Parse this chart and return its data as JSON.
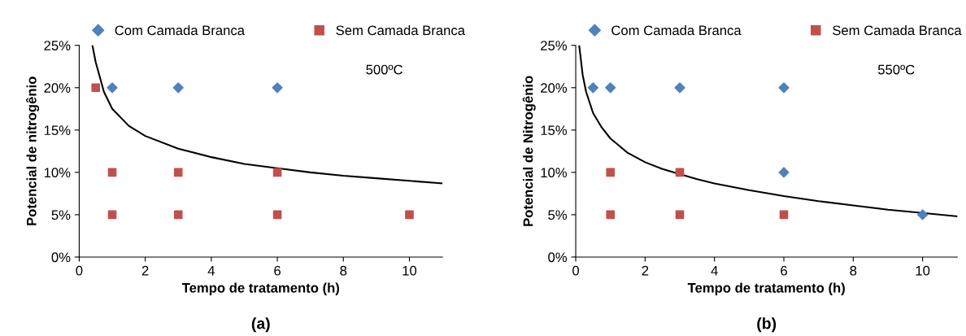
{
  "chart_data": [
    {
      "type": "scatter",
      "xlabel": "Tempo de tratamento (h)",
      "ylabel": "Potencial de nitrogênio",
      "legend": "top",
      "grid": false,
      "xlim": [
        0,
        11
      ],
      "xticks": [
        0,
        2,
        4,
        6,
        8,
        10
      ],
      "ylim": [
        0,
        25
      ],
      "yticks": [
        {
          "value": 0,
          "label": "0%"
        },
        {
          "value": 5,
          "label": "5%"
        },
        {
          "value": 10,
          "label": "10%"
        },
        {
          "value": 15,
          "label": "15%"
        },
        {
          "value": 20,
          "label": "20%"
        },
        {
          "value": 25,
          "label": "25%"
        }
      ],
      "annotations": [
        "500ºC",
        "(a)"
      ],
      "series": [
        {
          "name": "Com Camada Branca",
          "color": "#4f81bd",
          "marker": "diamond",
          "x": [
            1,
            3,
            6
          ],
          "values": [
            20,
            20,
            20
          ]
        },
        {
          "name": "Sem Camada Branca",
          "color": "#c0504d",
          "marker": "square",
          "x": [
            0.5,
            1,
            3,
            6,
            1,
            3,
            6,
            10
          ],
          "values": [
            20,
            10,
            10,
            10,
            5,
            5,
            5,
            5
          ]
        },
        {
          "type": "line",
          "color": "#000000",
          "marker": "none",
          "x": [
            0.4,
            0.5,
            0.75,
            1,
            1.5,
            2,
            3,
            4,
            5,
            6,
            7,
            8,
            9,
            10,
            11
          ],
          "values": [
            25,
            23,
            19.5,
            17.5,
            15.5,
            14.3,
            12.8,
            11.8,
            11,
            10.5,
            10,
            9.6,
            9.3,
            9,
            8.7
          ]
        }
      ]
    },
    {
      "type": "scatter",
      "xlabel": "Tempo de tratamento (h)",
      "ylabel": "Potencial de Nitrogênio",
      "legend": "top",
      "grid": false,
      "xlim": [
        0,
        11
      ],
      "xticks": [
        0,
        2,
        4,
        6,
        8,
        10
      ],
      "ylim": [
        0,
        25
      ],
      "yticks": [
        {
          "value": 0,
          "label": "0%"
        },
        {
          "value": 5,
          "label": "5%"
        },
        {
          "value": 10,
          "label": "10%"
        },
        {
          "value": 15,
          "label": "15%"
        },
        {
          "value": 20,
          "label": "20%"
        },
        {
          "value": 25,
          "label": "25%"
        }
      ],
      "annotations": [
        "550ºC",
        "(b)"
      ],
      "series": [
        {
          "name": "Com Camada Branca",
          "color": "#4f81bd",
          "marker": "diamond",
          "x": [
            0.5,
            1,
            3,
            6,
            6,
            10
          ],
          "values": [
            20,
            20,
            20,
            20,
            10,
            5
          ]
        },
        {
          "name": "Sem Camada Branca",
          "color": "#c0504d",
          "marker": "square",
          "x": [
            1,
            3,
            1,
            3,
            6
          ],
          "values": [
            10,
            10,
            5,
            5,
            5
          ]
        },
        {
          "type": "line",
          "color": "#000000",
          "marker": "none",
          "x": [
            0.1,
            0.2,
            0.3,
            0.5,
            0.75,
            1,
            1.5,
            2,
            2.5,
            3.5,
            4,
            5,
            6,
            7,
            8,
            9,
            10,
            11
          ],
          "values": [
            25,
            21.5,
            19.5,
            17,
            15.3,
            14,
            12.3,
            11.2,
            10.4,
            9.2,
            8.7,
            7.9,
            7.2,
            6.6,
            6.1,
            5.6,
            5.2,
            4.8
          ]
        }
      ]
    }
  ]
}
